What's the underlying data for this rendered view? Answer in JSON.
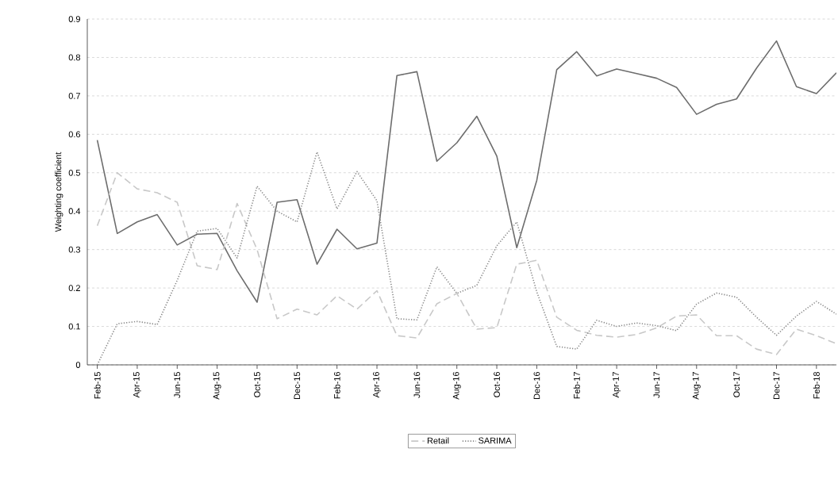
{
  "chart_data": {
    "type": "line",
    "ylabel": "Weighting coefficient",
    "categories": [
      "Feb-15",
      null,
      "Apr-15",
      null,
      "Jun-15",
      null,
      "Aug-15",
      null,
      "Oct-15",
      null,
      "Dec-15",
      null,
      "Feb-16",
      null,
      "Apr-16",
      null,
      "Jun-16",
      null,
      "Aug-16",
      null,
      "Oct-16",
      null,
      "Dec-16",
      null,
      "Feb-17",
      null,
      "Apr-17",
      null,
      "Jun-17",
      null,
      "Aug-17",
      null,
      "Oct-17",
      null,
      "Dec-17",
      null,
      "Feb-18",
      null
    ],
    "ylim": [
      0,
      0.9
    ],
    "yticks": [
      0,
      0.1,
      0.2,
      0.3,
      0.4,
      0.5,
      0.6,
      0.7,
      0.8,
      0.9
    ],
    "grid": "y",
    "legend": "bottom",
    "series": [
      {
        "color": "#6d6d6d",
        "line_style": "solid",
        "values": [
          0.585,
          0.342,
          0.372,
          0.391,
          0.312,
          0.34,
          0.342,
          0.245,
          0.163,
          0.423,
          0.43,
          0.262,
          0.353,
          0.302,
          0.317,
          0.753,
          0.763,
          0.53,
          0.578,
          0.647,
          0.543,
          0.305,
          0.48,
          0.768,
          0.815,
          0.752,
          0.77,
          0.758,
          0.746,
          0.722,
          0.652,
          0.678,
          0.692,
          0.772,
          0.843,
          0.724,
          0.706,
          0.76
        ]
      },
      {
        "name": "Retail",
        "color": "#c8c8c8",
        "line_style": "dashed",
        "values": [
          0.362,
          0.5,
          0.458,
          0.448,
          0.423,
          0.258,
          0.248,
          0.42,
          0.3,
          0.12,
          0.145,
          0.13,
          0.18,
          0.145,
          0.193,
          0.076,
          0.07,
          0.159,
          0.186,
          0.093,
          0.097,
          0.262,
          0.272,
          0.124,
          0.09,
          0.077,
          0.072,
          0.079,
          0.096,
          0.127,
          0.13,
          0.076,
          0.076,
          0.041,
          0.027,
          0.093,
          0.076,
          0.055
        ]
      },
      {
        "name": "SARIMA",
        "color": "#8a8a8a",
        "line_style": "dotted",
        "values": [
          0.0,
          0.107,
          0.113,
          0.105,
          0.22,
          0.348,
          0.355,
          0.278,
          0.465,
          0.4,
          0.372,
          0.554,
          0.406,
          0.503,
          0.427,
          0.12,
          0.117,
          0.255,
          0.186,
          0.207,
          0.31,
          0.372,
          0.19,
          0.048,
          0.041,
          0.116,
          0.1,
          0.109,
          0.102,
          0.089,
          0.158,
          0.187,
          0.176,
          0.124,
          0.077,
          0.127,
          0.165,
          0.132
        ]
      }
    ]
  }
}
